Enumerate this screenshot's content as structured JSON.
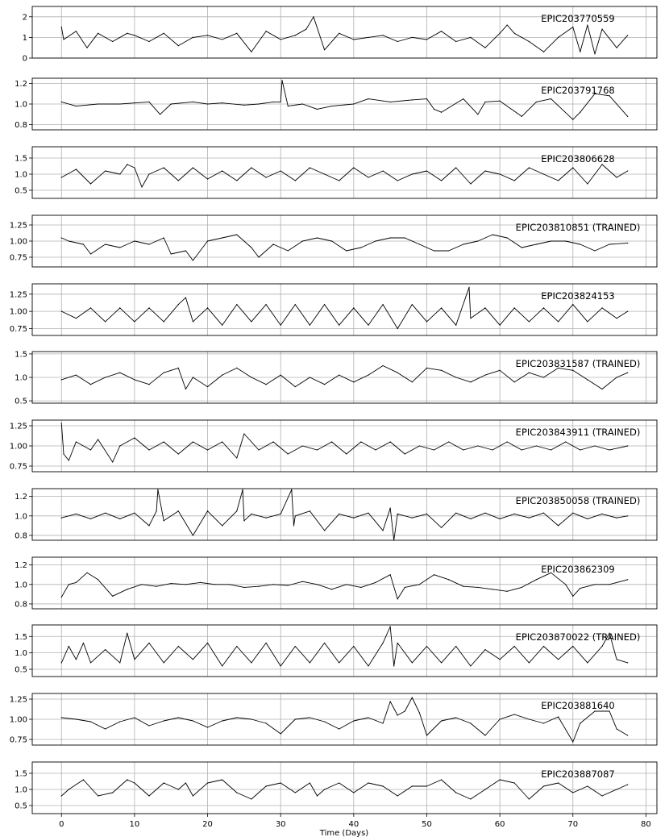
{
  "chart_data": {
    "type": "line",
    "grid": true,
    "xlabel": "Time (Days)",
    "xlim": [
      -4,
      81.5
    ],
    "xticks": [
      0,
      10,
      20,
      30,
      40,
      50,
      60,
      70,
      80
    ],
    "xtick_labels": [
      "0",
      "10",
      "20",
      "30",
      "40",
      "50",
      "60",
      "70",
      "80"
    ],
    "colors": {
      "line": "#000000",
      "grid": "#b0b0b0",
      "frame": "#000000"
    },
    "panels": [
      {
        "title": "EPIC203770559",
        "ylim": [
          0,
          2.5
        ],
        "yticks": [
          0,
          1,
          2
        ],
        "ytick_labels": [
          "0",
          "1",
          "2"
        ],
        "x": [
          0,
          0.3,
          2,
          3.5,
          5,
          7,
          9,
          10,
          12,
          14,
          16,
          18,
          20,
          22,
          24,
          26,
          28,
          30,
          32,
          33.5,
          34.5,
          36,
          38,
          40,
          42,
          44,
          46,
          48,
          50,
          52,
          54,
          56,
          58,
          60,
          61,
          62,
          64,
          66,
          68,
          70,
          71,
          72,
          73,
          74,
          76,
          77.5
        ],
        "y": [
          1.5,
          0.9,
          1.3,
          0.5,
          1.2,
          0.8,
          1.2,
          1.1,
          0.8,
          1.2,
          0.6,
          1.0,
          1.1,
          0.9,
          1.2,
          0.3,
          1.3,
          0.9,
          1.1,
          1.4,
          2.0,
          0.4,
          1.2,
          0.9,
          1.0,
          1.1,
          0.8,
          1.0,
          0.9,
          1.3,
          0.8,
          1.0,
          0.5,
          1.2,
          1.6,
          1.2,
          0.8,
          0.3,
          1.0,
          1.5,
          0.3,
          1.6,
          0.2,
          1.4,
          0.5,
          1.1
        ]
      },
      {
        "title": "EPIC203791768",
        "ylim": [
          0.75,
          1.25
        ],
        "yticks": [
          0.8,
          1.0,
          1.2
        ],
        "ytick_labels": [
          "0.8",
          "1.0",
          "1.2"
        ],
        "x": [
          0,
          2,
          5,
          8,
          10,
          12,
          13.5,
          15,
          18,
          20,
          22,
          25,
          27,
          29,
          30,
          30.2,
          31,
          33,
          35,
          37,
          40,
          42,
          45,
          48,
          50,
          51,
          52,
          55,
          57,
          58,
          60,
          63,
          65,
          67,
          70,
          71,
          73,
          75,
          77.5
        ],
        "y": [
          1.02,
          0.98,
          1.0,
          1.0,
          1.01,
          1.02,
          0.9,
          1.0,
          1.02,
          1.0,
          1.01,
          0.99,
          1.0,
          1.02,
          1.02,
          1.23,
          0.98,
          1.0,
          0.95,
          0.98,
          1.0,
          1.05,
          1.02,
          1.04,
          1.05,
          0.95,
          0.92,
          1.05,
          0.9,
          1.02,
          1.03,
          0.88,
          1.02,
          1.05,
          0.85,
          0.92,
          1.1,
          1.08,
          0.88
        ]
      },
      {
        "title": "EPIC203806628",
        "ylim": [
          0.25,
          1.85
        ],
        "yticks": [
          0.5,
          1.0,
          1.5
        ],
        "ytick_labels": [
          "0.5",
          "1.0",
          "1.5"
        ],
        "x": [
          0,
          2,
          4,
          6,
          8,
          9,
          10,
          11,
          12,
          14,
          16,
          18,
          20,
          22,
          24,
          26,
          28,
          30,
          32,
          34,
          36,
          38,
          40,
          42,
          44,
          46,
          48,
          50,
          52,
          54,
          56,
          58,
          60,
          62,
          64,
          66,
          68,
          70,
          72,
          74,
          76,
          77.5
        ],
        "y": [
          0.9,
          1.15,
          0.7,
          1.1,
          1.0,
          1.3,
          1.2,
          0.6,
          1.0,
          1.2,
          0.8,
          1.2,
          0.85,
          1.1,
          0.8,
          1.2,
          0.9,
          1.1,
          0.8,
          1.2,
          1.0,
          0.8,
          1.2,
          0.9,
          1.1,
          0.8,
          1.0,
          1.1,
          0.8,
          1.2,
          0.7,
          1.1,
          1.0,
          0.8,
          1.2,
          1.0,
          0.8,
          1.2,
          0.7,
          1.3,
          0.9,
          1.1
        ]
      },
      {
        "title": "EPIC203810851 (TRAINED)",
        "ylim": [
          0.6,
          1.4
        ],
        "yticks": [
          0.75,
          1.0,
          1.25
        ],
        "ytick_labels": [
          "0.75",
          "1.00",
          "1.25"
        ],
        "x": [
          0,
          1,
          3,
          4,
          6,
          8,
          10,
          12,
          14,
          15,
          17,
          18,
          20,
          22,
          24,
          26,
          27,
          29,
          31,
          33,
          35,
          37,
          39,
          41,
          43,
          45,
          47,
          49,
          51,
          53,
          55,
          57,
          59,
          61,
          63,
          65,
          67,
          69,
          71,
          73,
          75,
          77.5
        ],
        "y": [
          1.05,
          1.0,
          0.95,
          0.8,
          0.95,
          0.9,
          1.0,
          0.95,
          1.05,
          0.8,
          0.85,
          0.7,
          1.0,
          1.05,
          1.1,
          0.9,
          0.75,
          0.95,
          0.85,
          1.0,
          1.05,
          1.0,
          0.85,
          0.9,
          1.0,
          1.05,
          1.05,
          0.95,
          0.85,
          0.85,
          0.95,
          1.0,
          1.1,
          1.05,
          0.9,
          0.95,
          1.0,
          1.0,
          0.95,
          0.85,
          0.95,
          0.97
        ]
      },
      {
        "title": "EPIC203824153",
        "ylim": [
          0.65,
          1.4
        ],
        "yticks": [
          0.75,
          1.0,
          1.25
        ],
        "ytick_labels": [
          "0.75",
          "1.00",
          "1.25"
        ],
        "x": [
          0,
          2,
          4,
          6,
          8,
          10,
          12,
          14,
          16,
          17,
          18,
          20,
          22,
          24,
          26,
          28,
          30,
          32,
          34,
          36,
          38,
          40,
          42,
          44,
          46,
          48,
          50,
          52,
          54,
          55.8,
          56,
          58,
          60,
          62,
          64,
          66,
          68,
          70,
          72,
          74,
          76,
          77.5
        ],
        "y": [
          1.0,
          0.9,
          1.05,
          0.85,
          1.05,
          0.85,
          1.05,
          0.85,
          1.1,
          1.2,
          0.85,
          1.05,
          0.8,
          1.1,
          0.85,
          1.1,
          0.8,
          1.1,
          0.8,
          1.1,
          0.8,
          1.05,
          0.8,
          1.1,
          0.75,
          1.1,
          0.85,
          1.05,
          0.8,
          1.35,
          0.9,
          1.05,
          0.8,
          1.05,
          0.85,
          1.05,
          0.85,
          1.1,
          0.85,
          1.05,
          0.9,
          1.0
        ]
      },
      {
        "title": "EPIC203831587 (TRAINED)",
        "ylim": [
          0.45,
          1.55
        ],
        "yticks": [
          0.5,
          1.0,
          1.5
        ],
        "ytick_labels": [
          "0.5",
          "1.0",
          "1.5"
        ],
        "x": [
          0,
          2,
          4,
          6,
          8,
          10,
          12,
          14,
          16,
          17,
          18,
          20,
          22,
          24,
          26,
          28,
          30,
          32,
          34,
          36,
          38,
          40,
          42,
          44,
          46,
          48,
          50,
          52,
          54,
          56,
          58,
          60,
          62,
          64,
          66,
          68,
          70,
          72,
          74,
          76,
          77.5
        ],
        "y": [
          0.95,
          1.05,
          0.85,
          1.0,
          1.1,
          0.95,
          0.85,
          1.1,
          1.2,
          0.75,
          1.0,
          0.8,
          1.05,
          1.2,
          1.0,
          0.85,
          1.05,
          0.8,
          1.0,
          0.85,
          1.05,
          0.9,
          1.05,
          1.25,
          1.1,
          0.9,
          1.2,
          1.15,
          1.0,
          0.9,
          1.05,
          1.15,
          0.9,
          1.1,
          1.0,
          1.2,
          1.15,
          0.95,
          0.75,
          1.0,
          1.1
        ]
      },
      {
        "title": "EPIC203843911 (TRAINED)",
        "ylim": [
          0.68,
          1.32
        ],
        "yticks": [
          0.75,
          1.0,
          1.25
        ],
        "ytick_labels": [
          "0.75",
          "1.00",
          "1.25"
        ],
        "x": [
          0,
          0.3,
          1,
          2,
          4,
          5,
          7,
          8,
          10,
          12,
          14,
          16,
          18,
          20,
          22,
          24,
          25,
          27,
          29,
          31,
          33,
          35,
          37,
          39,
          41,
          43,
          45,
          47,
          49,
          51,
          53,
          55,
          57,
          59,
          61,
          63,
          65,
          67,
          69,
          71,
          73,
          75,
          77.5
        ],
        "y": [
          1.28,
          0.9,
          0.82,
          1.05,
          0.95,
          1.08,
          0.8,
          1.0,
          1.1,
          0.95,
          1.05,
          0.9,
          1.05,
          0.95,
          1.05,
          0.85,
          1.15,
          0.95,
          1.05,
          0.9,
          1.0,
          0.95,
          1.05,
          0.9,
          1.05,
          0.95,
          1.05,
          0.9,
          1.0,
          0.95,
          1.05,
          0.95,
          1.0,
          0.95,
          1.05,
          0.95,
          1.0,
          0.95,
          1.05,
          0.95,
          1.0,
          0.95,
          1.0
        ]
      },
      {
        "title": "EPIC203850058 (TRAINED)",
        "ylim": [
          0.75,
          1.28
        ],
        "yticks": [
          0.8,
          1.0,
          1.2
        ],
        "ytick_labels": [
          "0.8",
          "1.0",
          "1.2"
        ],
        "x": [
          0,
          2,
          4,
          6,
          8,
          10,
          12,
          13,
          13.2,
          14,
          16,
          18,
          20,
          22,
          24,
          24.8,
          25,
          26,
          28,
          30,
          31.5,
          31.8,
          32,
          34,
          36,
          38,
          40,
          42,
          44,
          45,
          45.5,
          46,
          48,
          50,
          52,
          54,
          56,
          58,
          60,
          62,
          64,
          66,
          68,
          70,
          72,
          74,
          76,
          77.5
        ],
        "y": [
          0.98,
          1.02,
          0.97,
          1.03,
          0.97,
          1.03,
          0.9,
          1.05,
          1.27,
          0.95,
          1.05,
          0.8,
          1.05,
          0.9,
          1.05,
          1.27,
          0.95,
          1.02,
          0.98,
          1.02,
          1.27,
          0.9,
          1.0,
          1.05,
          0.85,
          1.02,
          0.98,
          1.03,
          0.85,
          1.08,
          0.75,
          1.02,
          0.98,
          1.02,
          0.88,
          1.03,
          0.97,
          1.03,
          0.97,
          1.02,
          0.98,
          1.03,
          0.9,
          1.03,
          0.97,
          1.02,
          0.98,
          1.0
        ]
      },
      {
        "title": "EPIC203862309",
        "ylim": [
          0.75,
          1.28
        ],
        "yticks": [
          0.8,
          1.0,
          1.2
        ],
        "ytick_labels": [
          "0.8",
          "1.0",
          "1.2"
        ],
        "x": [
          0,
          1,
          2,
          3.5,
          5,
          7,
          9,
          11,
          13,
          15,
          17,
          19,
          21,
          23,
          25,
          27,
          29,
          31,
          33,
          35,
          37,
          39,
          41,
          43,
          45,
          46,
          47,
          49,
          51,
          53,
          55,
          57,
          59,
          61,
          63,
          65,
          67,
          69,
          70,
          71,
          73,
          75,
          77.5
        ],
        "y": [
          0.87,
          1.0,
          1.02,
          1.12,
          1.05,
          0.88,
          0.95,
          1.0,
          0.98,
          1.01,
          1.0,
          1.02,
          1.0,
          1.0,
          0.97,
          0.98,
          1.0,
          0.99,
          1.03,
          1.0,
          0.95,
          1.0,
          0.97,
          1.02,
          1.1,
          0.85,
          0.97,
          1.0,
          1.1,
          1.05,
          0.98,
          0.97,
          0.95,
          0.93,
          0.97,
          1.05,
          1.12,
          1.0,
          0.88,
          0.96,
          1.0,
          1.0,
          1.05
        ]
      },
      {
        "title": "EPIC203870022 (TRAINED)",
        "ylim": [
          0.28,
          1.85
        ],
        "yticks": [
          0.5,
          1.0,
          1.5
        ],
        "ytick_labels": [
          "0.5",
          "1.0",
          "1.5"
        ],
        "x": [
          0,
          1,
          2,
          3,
          4,
          6,
          8,
          9,
          10,
          12,
          14,
          16,
          18,
          20,
          22,
          24,
          26,
          28,
          30,
          32,
          34,
          36,
          38,
          40,
          42,
          44,
          45,
          45.5,
          46,
          48,
          50,
          52,
          54,
          56,
          58,
          60,
          62,
          64,
          66,
          68,
          70,
          72,
          74,
          75,
          76,
          77.5
        ],
        "y": [
          0.7,
          1.2,
          0.8,
          1.3,
          0.7,
          1.1,
          0.7,
          1.6,
          0.8,
          1.3,
          0.7,
          1.2,
          0.8,
          1.3,
          0.6,
          1.2,
          0.7,
          1.3,
          0.6,
          1.2,
          0.7,
          1.3,
          0.7,
          1.2,
          0.6,
          1.3,
          1.8,
          0.6,
          1.3,
          0.7,
          1.2,
          0.7,
          1.2,
          0.6,
          1.1,
          0.8,
          1.2,
          0.7,
          1.2,
          0.8,
          1.2,
          0.7,
          1.2,
          1.6,
          0.8,
          0.7
        ]
      },
      {
        "title": "EPIC203881640",
        "ylim": [
          0.68,
          1.32
        ],
        "yticks": [
          0.75,
          1.0,
          1.25
        ],
        "ytick_labels": [
          "0.75",
          "1.00",
          "1.25"
        ],
        "x": [
          0,
          2,
          4,
          6,
          8,
          10,
          12,
          14,
          16,
          18,
          20,
          22,
          24,
          26,
          28,
          30,
          32,
          34,
          36,
          38,
          40,
          42,
          44,
          45,
          46,
          47,
          48,
          49,
          50,
          52,
          54,
          56,
          58,
          60,
          62,
          64,
          66,
          68,
          70,
          71,
          73,
          75,
          76,
          77.5
        ],
        "y": [
          1.02,
          1.0,
          0.97,
          0.88,
          0.97,
          1.02,
          0.92,
          0.98,
          1.02,
          0.98,
          0.9,
          0.98,
          1.02,
          1.0,
          0.95,
          0.82,
          1.0,
          1.02,
          0.97,
          0.88,
          0.98,
          1.02,
          0.95,
          1.22,
          1.05,
          1.1,
          1.27,
          1.08,
          0.8,
          0.98,
          1.02,
          0.95,
          0.8,
          1.0,
          1.06,
          1.0,
          0.95,
          1.03,
          0.72,
          0.95,
          1.1,
          1.1,
          0.88,
          0.8
        ]
      },
      {
        "title": "EPIC203887087",
        "ylim": [
          0.25,
          1.85
        ],
        "yticks": [
          0.5,
          1.0,
          1.5
        ],
        "ytick_labels": [
          "0.5",
          "1.0",
          "1.5"
        ],
        "x": [
          0,
          1,
          3,
          5,
          7,
          9,
          10,
          12,
          14,
          16,
          17,
          18,
          20,
          22,
          24,
          26,
          28,
          30,
          32,
          34,
          35,
          36,
          38,
          40,
          42,
          44,
          46,
          48,
          50,
          52,
          54,
          56,
          58,
          60,
          62,
          64,
          66,
          68,
          70,
          72,
          74,
          76,
          77.5
        ],
        "y": [
          0.8,
          1.0,
          1.3,
          0.8,
          0.9,
          1.3,
          1.2,
          0.8,
          1.2,
          1.0,
          1.2,
          0.8,
          1.2,
          1.3,
          0.9,
          0.7,
          1.1,
          1.2,
          0.9,
          1.2,
          0.8,
          1.0,
          1.2,
          0.9,
          1.2,
          1.1,
          0.8,
          1.1,
          1.1,
          1.3,
          0.9,
          0.7,
          1.0,
          1.3,
          1.2,
          0.7,
          1.1,
          1.2,
          0.9,
          1.1,
          0.8,
          1.0,
          1.15
        ]
      }
    ]
  }
}
